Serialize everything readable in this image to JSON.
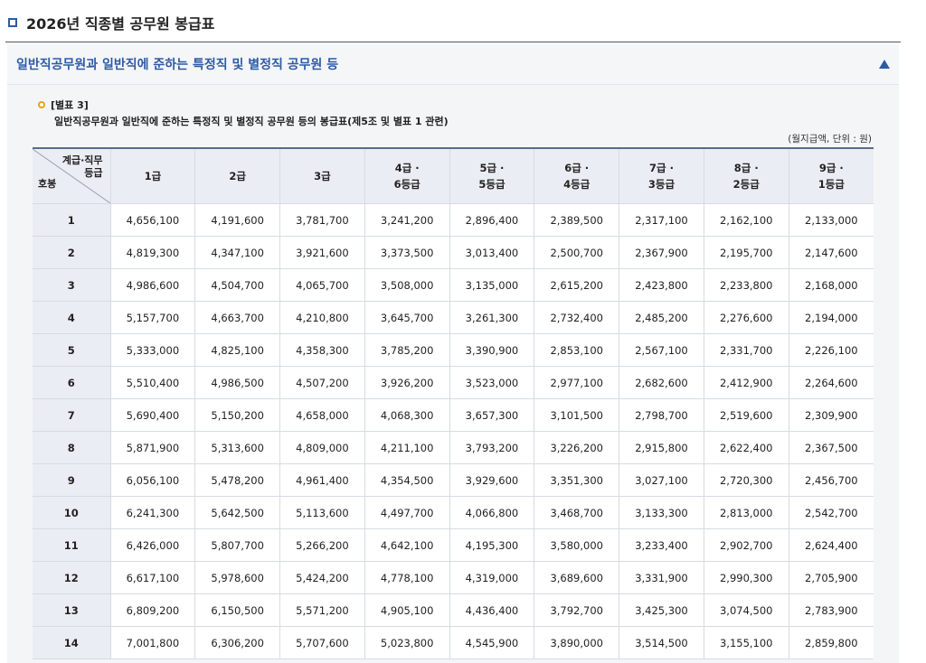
{
  "page": {
    "title": "2026년 직종별 공무원 봉급표"
  },
  "section": {
    "title": "일반직공무원과 일반직에 준하는 특정직 및 별정직 공무원 등"
  },
  "annex": {
    "label": "[별표 3]",
    "description": "일반직공무원과 일반직에 준하는 특정직 및 별정직 공무원 등의 봉급표(제5조 및 별표 1 관련)",
    "unit_note": "(월지급액, 단위 : 원)"
  },
  "table": {
    "corner": {
      "top_line1": "계급·직무",
      "top_line2": "등급",
      "bottom": "호봉"
    },
    "columns": [
      {
        "line1": "1급",
        "line2": ""
      },
      {
        "line1": "2급",
        "line2": ""
      },
      {
        "line1": "3급",
        "line2": ""
      },
      {
        "line1": "4급 ·",
        "line2": "6등급"
      },
      {
        "line1": "5급 ·",
        "line2": "5등급"
      },
      {
        "line1": "6급 ·",
        "line2": "4등급"
      },
      {
        "line1": "7급 ·",
        "line2": "3등급"
      },
      {
        "line1": "8급 ·",
        "line2": "2등급"
      },
      {
        "line1": "9급 ·",
        "line2": "1등급"
      }
    ],
    "rows": [
      {
        "step": "1",
        "values": [
          "4,656,100",
          "4,191,600",
          "3,781,700",
          "3,241,200",
          "2,896,400",
          "2,389,500",
          "2,317,100",
          "2,162,100",
          "2,133,000"
        ]
      },
      {
        "step": "2",
        "values": [
          "4,819,300",
          "4,347,100",
          "3,921,600",
          "3,373,500",
          "3,013,400",
          "2,500,700",
          "2,367,900",
          "2,195,700",
          "2,147,600"
        ]
      },
      {
        "step": "3",
        "values": [
          "4,986,600",
          "4,504,700",
          "4,065,700",
          "3,508,000",
          "3,135,000",
          "2,615,200",
          "2,423,800",
          "2,233,800",
          "2,168,000"
        ]
      },
      {
        "step": "4",
        "values": [
          "5,157,700",
          "4,663,700",
          "4,210,800",
          "3,645,700",
          "3,261,300",
          "2,732,400",
          "2,485,200",
          "2,276,600",
          "2,194,000"
        ]
      },
      {
        "step": "5",
        "values": [
          "5,333,000",
          "4,825,100",
          "4,358,300",
          "3,785,200",
          "3,390,900",
          "2,853,100",
          "2,567,100",
          "2,331,700",
          "2,226,100"
        ]
      },
      {
        "step": "6",
        "values": [
          "5,510,400",
          "4,986,500",
          "4,507,200",
          "3,926,200",
          "3,523,000",
          "2,977,100",
          "2,682,600",
          "2,412,900",
          "2,264,600"
        ]
      },
      {
        "step": "7",
        "values": [
          "5,690,400",
          "5,150,200",
          "4,658,000",
          "4,068,300",
          "3,657,300",
          "3,101,500",
          "2,798,700",
          "2,519,600",
          "2,309,900"
        ]
      },
      {
        "step": "8",
        "values": [
          "5,871,900",
          "5,313,600",
          "4,809,000",
          "4,211,100",
          "3,793,200",
          "3,226,200",
          "2,915,800",
          "2,622,400",
          "2,367,500"
        ]
      },
      {
        "step": "9",
        "values": [
          "6,056,100",
          "5,478,200",
          "4,961,400",
          "4,354,500",
          "3,929,600",
          "3,351,300",
          "3,027,100",
          "2,720,300",
          "2,456,700"
        ]
      },
      {
        "step": "10",
        "values": [
          "6,241,300",
          "5,642,500",
          "5,113,600",
          "4,497,700",
          "4,066,800",
          "3,468,700",
          "3,133,300",
          "2,813,000",
          "2,542,700"
        ]
      },
      {
        "step": "11",
        "values": [
          "6,426,000",
          "5,807,700",
          "5,266,200",
          "4,642,100",
          "4,195,300",
          "3,580,000",
          "3,233,400",
          "2,902,700",
          "2,624,400"
        ]
      },
      {
        "step": "12",
        "values": [
          "6,617,100",
          "5,978,600",
          "5,424,200",
          "4,778,100",
          "4,319,000",
          "3,689,600",
          "3,331,900",
          "2,990,300",
          "2,705,900"
        ]
      },
      {
        "step": "13",
        "values": [
          "6,809,200",
          "6,150,500",
          "5,571,200",
          "4,905,100",
          "4,436,400",
          "3,792,700",
          "3,425,300",
          "3,074,500",
          "2,783,900"
        ]
      },
      {
        "step": "14",
        "values": [
          "7,001,800",
          "6,306,200",
          "5,707,600",
          "5,023,800",
          "4,545,900",
          "3,890,000",
          "3,514,500",
          "3,155,100",
          "2,859,800"
        ]
      }
    ]
  }
}
